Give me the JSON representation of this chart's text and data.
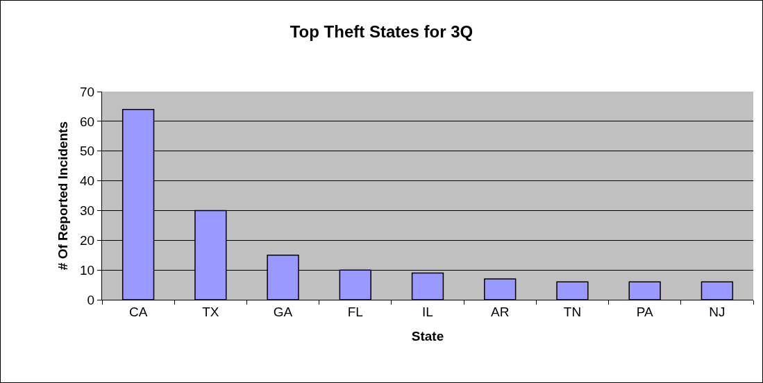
{
  "chart_data": {
    "type": "bar",
    "title": "Top Theft States for 3Q",
    "xlabel": "State",
    "ylabel": "# Of Reported Incidents",
    "categories": [
      "CA",
      "TX",
      "GA",
      "FL",
      "IL",
      "AR",
      "TN",
      "PA",
      "NJ"
    ],
    "values": [
      64,
      30,
      15,
      10,
      9,
      7,
      6,
      6,
      6
    ],
    "color": "#9999ff",
    "ylim": [
      0,
      70
    ],
    "yticks": [
      0,
      10,
      20,
      30,
      40,
      50,
      60,
      70
    ],
    "grid": "y",
    "legend": false
  }
}
